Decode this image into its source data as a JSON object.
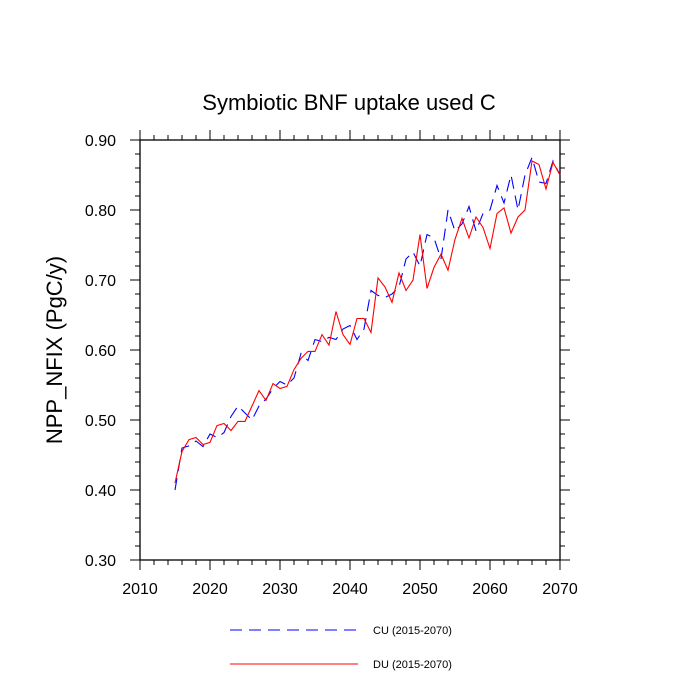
{
  "chart_data": {
    "type": "line",
    "title": "Symbiotic BNF uptake used C",
    "xlabel": "",
    "ylabel": "NPP_NFIX  (PgC/y)",
    "xlim": [
      2010,
      2070
    ],
    "ylim": [
      0.3,
      0.9
    ],
    "xticks": [
      2010,
      2020,
      2030,
      2040,
      2050,
      2060,
      2070
    ],
    "xtick_labels": [
      "2010",
      "2020",
      "2030",
      "2040",
      "2050",
      "2060",
      "2070"
    ],
    "yticks": [
      0.3,
      0.4,
      0.5,
      0.6,
      0.7,
      0.8,
      0.9
    ],
    "ytick_labels": [
      "0.30",
      "0.40",
      "0.50",
      "0.60",
      "0.70",
      "0.80",
      "0.90"
    ],
    "x": [
      2015,
      2016,
      2017,
      2018,
      2019,
      2020,
      2021,
      2022,
      2023,
      2024,
      2025,
      2026,
      2027,
      2028,
      2029,
      2030,
      2031,
      2032,
      2033,
      2034,
      2035,
      2036,
      2037,
      2038,
      2039,
      2040,
      2041,
      2042,
      2043,
      2044,
      2045,
      2046,
      2047,
      2048,
      2049,
      2050,
      2051,
      2052,
      2053,
      2054,
      2055,
      2056,
      2057,
      2058,
      2059,
      2060,
      2061,
      2062,
      2063,
      2064,
      2065,
      2066,
      2067,
      2068,
      2069,
      2070
    ],
    "series": [
      {
        "name": "CU (2015-2070)",
        "color": "#0000ff",
        "style": "dashed",
        "values": [
          0.4,
          0.46,
          0.463,
          0.47,
          0.462,
          0.48,
          0.475,
          0.482,
          0.505,
          0.52,
          0.51,
          0.5,
          0.52,
          0.53,
          0.545,
          0.555,
          0.55,
          0.56,
          0.595,
          0.585,
          0.615,
          0.612,
          0.618,
          0.615,
          0.63,
          0.635,
          0.615,
          0.63,
          0.685,
          0.678,
          0.675,
          0.68,
          0.69,
          0.73,
          0.74,
          0.72,
          0.765,
          0.76,
          0.73,
          0.8,
          0.77,
          0.78,
          0.805,
          0.77,
          0.795,
          0.8,
          0.835,
          0.81,
          0.85,
          0.8,
          0.85,
          0.875,
          0.84,
          0.838,
          0.87,
          0.85
        ]
      },
      {
        "name": "DU (2015-2070)",
        "color": "#ff0000",
        "style": "solid",
        "values": [
          0.41,
          0.455,
          0.472,
          0.475,
          0.465,
          0.468,
          0.492,
          0.495,
          0.485,
          0.498,
          0.498,
          0.52,
          0.542,
          0.528,
          0.552,
          0.545,
          0.548,
          0.572,
          0.588,
          0.598,
          0.598,
          0.622,
          0.607,
          0.655,
          0.622,
          0.608,
          0.645,
          0.645,
          0.625,
          0.703,
          0.69,
          0.668,
          0.71,
          0.685,
          0.7,
          0.765,
          0.688,
          0.718,
          0.737,
          0.714,
          0.758,
          0.788,
          0.76,
          0.79,
          0.775,
          0.745,
          0.795,
          0.803,
          0.767,
          0.79,
          0.8,
          0.87,
          0.865,
          0.83,
          0.868,
          0.85
        ]
      }
    ],
    "legend": "bottom"
  }
}
